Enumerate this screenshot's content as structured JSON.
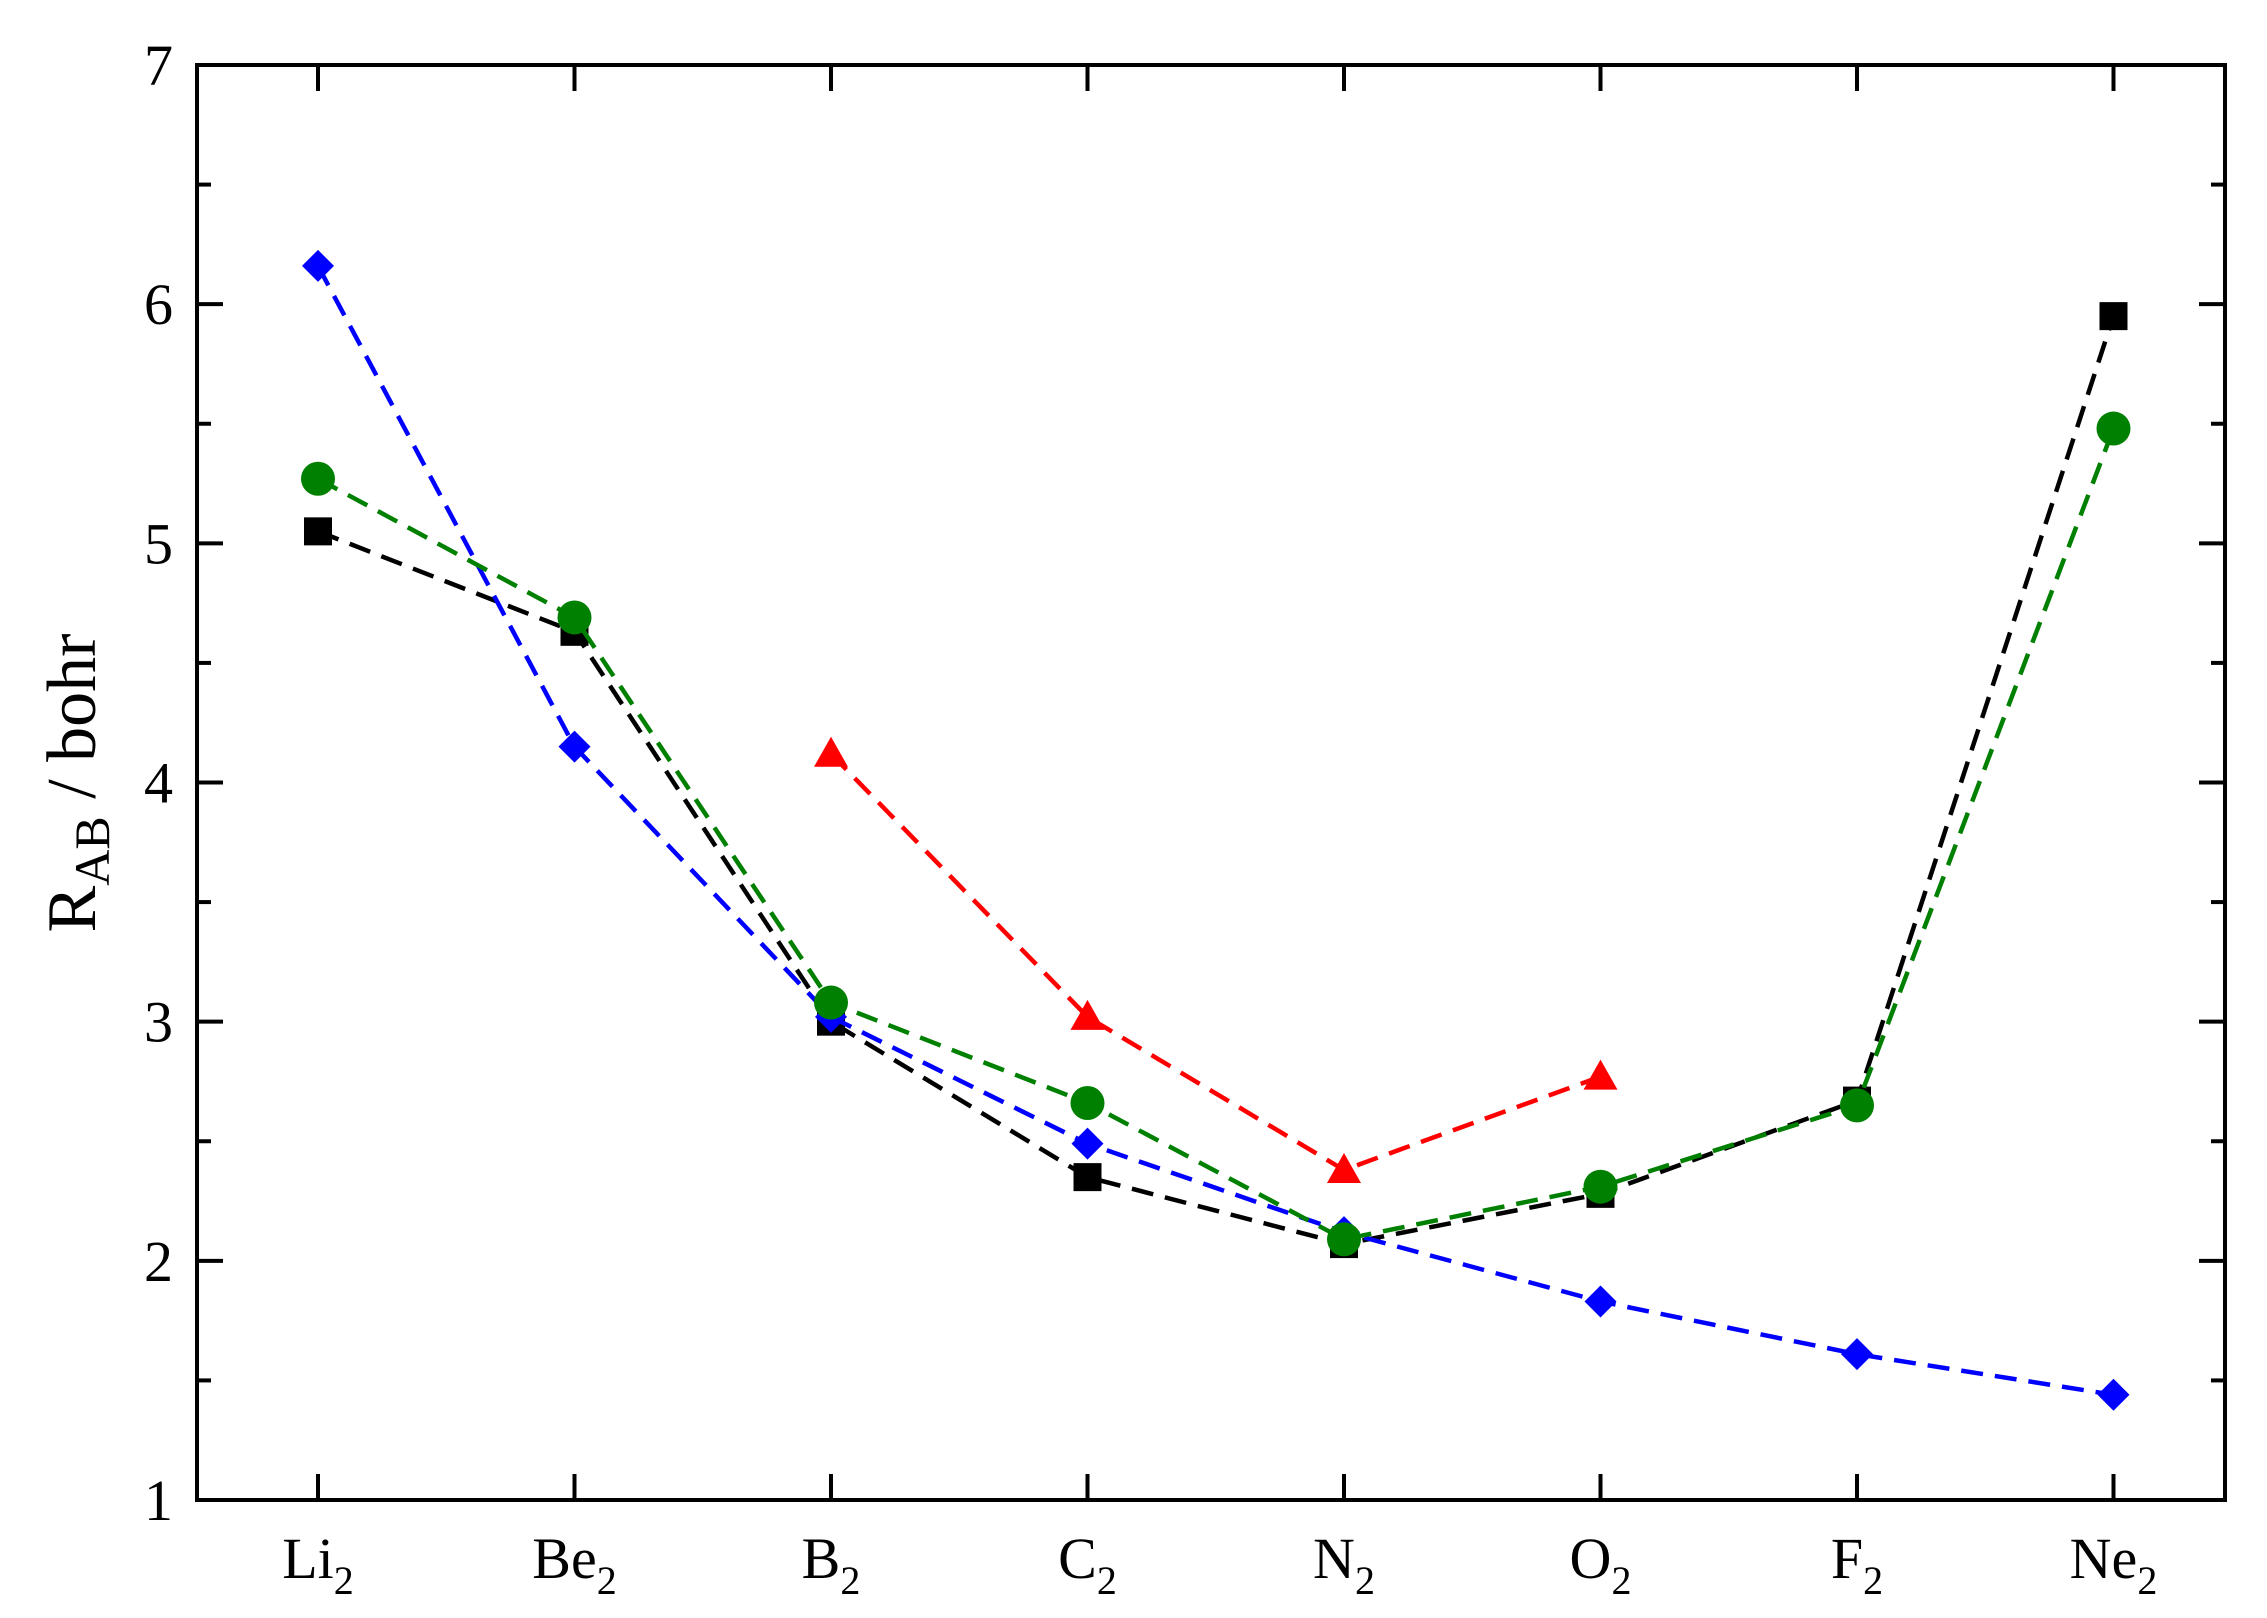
{
  "chart_data": {
    "type": "line",
    "title": "",
    "xlabel": "",
    "ylabel": {
      "main": "R",
      "sub": "AB",
      "rest": " / bohr"
    },
    "ylim": [
      1,
      7
    ],
    "yticks": [
      "1",
      "2",
      "3",
      "4",
      "5",
      "6",
      "7"
    ],
    "categories": [
      {
        "base": "Li",
        "sub": "2"
      },
      {
        "base": "Be",
        "sub": "2"
      },
      {
        "base": "B",
        "sub": "2"
      },
      {
        "base": "C",
        "sub": "2"
      },
      {
        "base": "N",
        "sub": "2"
      },
      {
        "base": "O",
        "sub": "2"
      },
      {
        "base": "F",
        "sub": "2"
      },
      {
        "base": "Ne",
        "sub": "2"
      }
    ],
    "grid": false,
    "legend": "none",
    "series": [
      {
        "color": "#000000",
        "marker": "square",
        "line": "dashed",
        "values": [
          5.05,
          4.63,
          3.0,
          2.35,
          2.07,
          2.28,
          2.67,
          5.95
        ]
      },
      {
        "color": "#0000ff",
        "marker": "diamond",
        "line": "dashed",
        "values": [
          6.16,
          4.15,
          3.02,
          2.49,
          2.12,
          1.83,
          1.61,
          1.44
        ]
      },
      {
        "color": "#ff0000",
        "marker": "triangle",
        "line": "dashed",
        "values": [
          null,
          null,
          4.12,
          3.02,
          2.38,
          2.77,
          null,
          null
        ]
      },
      {
        "color": "#008000",
        "marker": "circle",
        "line": "dashed",
        "values": [
          5.27,
          4.69,
          3.08,
          2.66,
          2.09,
          2.31,
          2.65,
          5.48
        ]
      }
    ]
  }
}
